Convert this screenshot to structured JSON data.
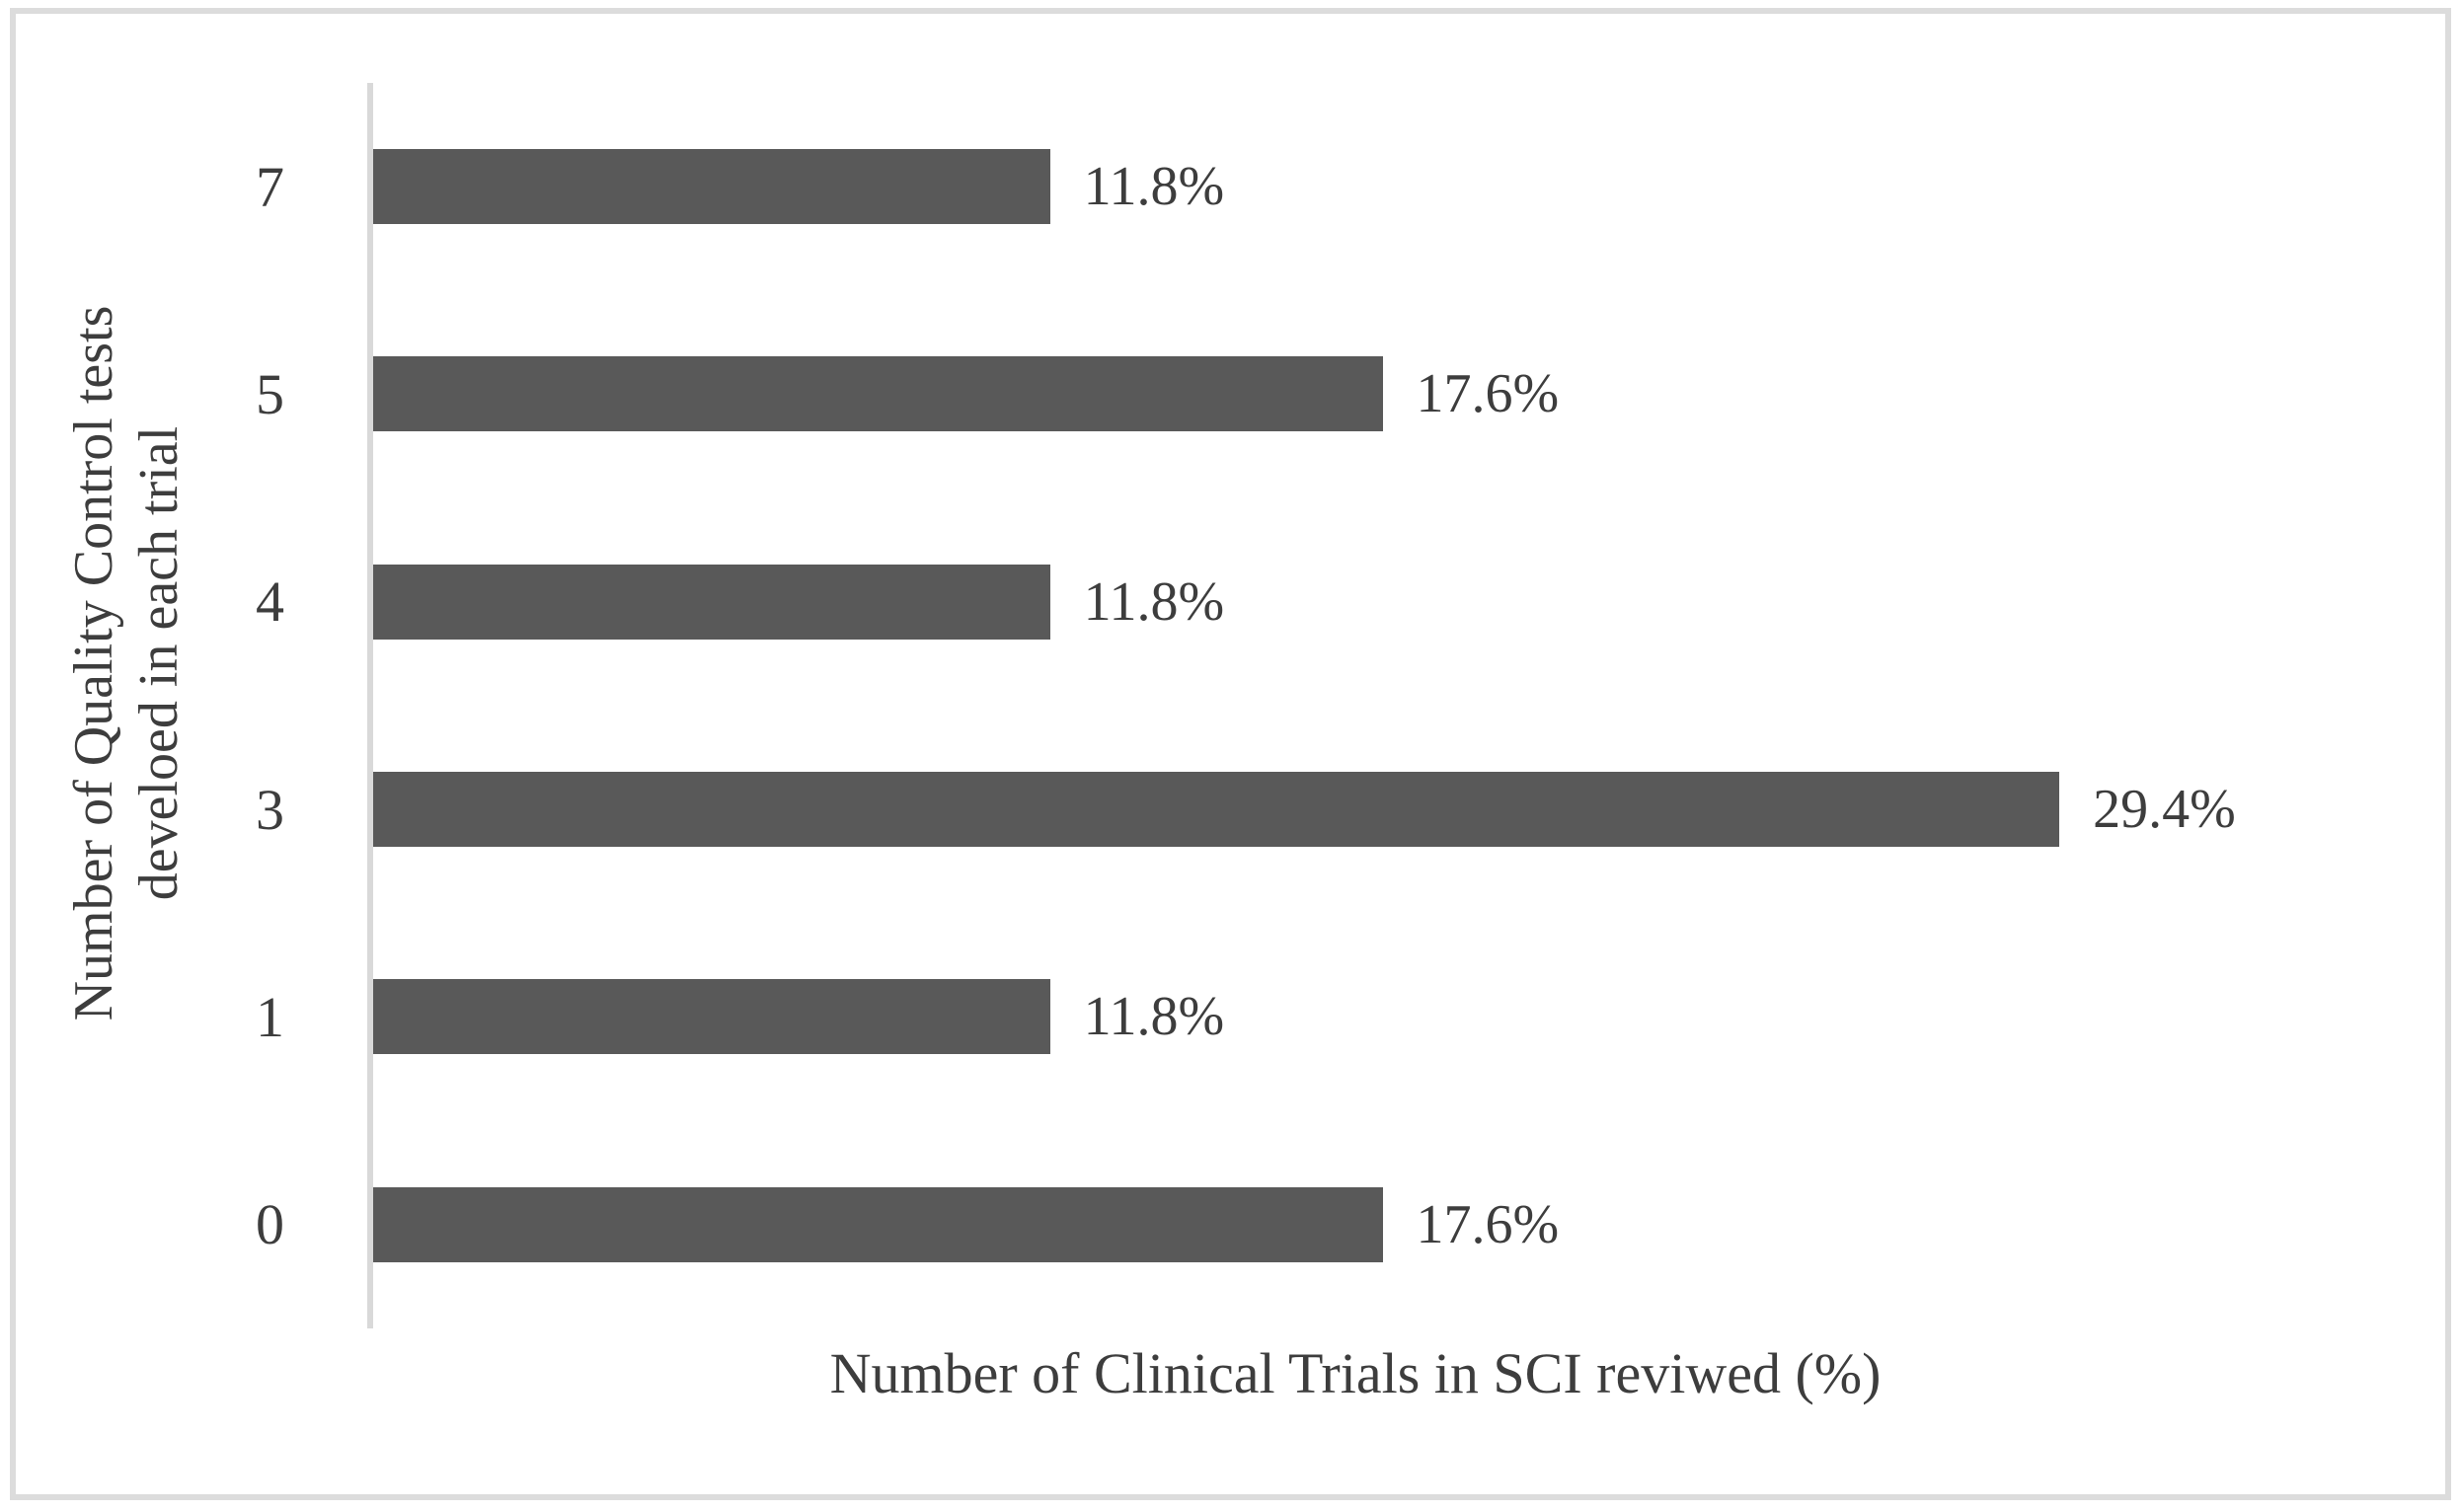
{
  "figure": {
    "background": "#ffffff",
    "border_color": "#dcdcdc"
  },
  "chart_data": {
    "type": "bar",
    "orientation": "horizontal",
    "categories": [
      "7",
      "5",
      "4",
      "3",
      "1",
      "0"
    ],
    "values": [
      11.8,
      17.6,
      11.8,
      29.4,
      11.8,
      17.6
    ],
    "data_labels": [
      "11.8%",
      "17.6%",
      "11.8%",
      "29.4%",
      "11.8%",
      "17.6%"
    ],
    "xlabel": "Number of Clinical Trials in SCI reviwed (%)",
    "ylabel_line1": "Number of Quality Control tests",
    "ylabel_line2": "develoed in each trial",
    "xlim": [
      0,
      30
    ],
    "bar_color": "#595959",
    "axis_line_color": "#d9d9d9",
    "text_color": "#3d3d3d",
    "grid": false,
    "legend": false
  }
}
